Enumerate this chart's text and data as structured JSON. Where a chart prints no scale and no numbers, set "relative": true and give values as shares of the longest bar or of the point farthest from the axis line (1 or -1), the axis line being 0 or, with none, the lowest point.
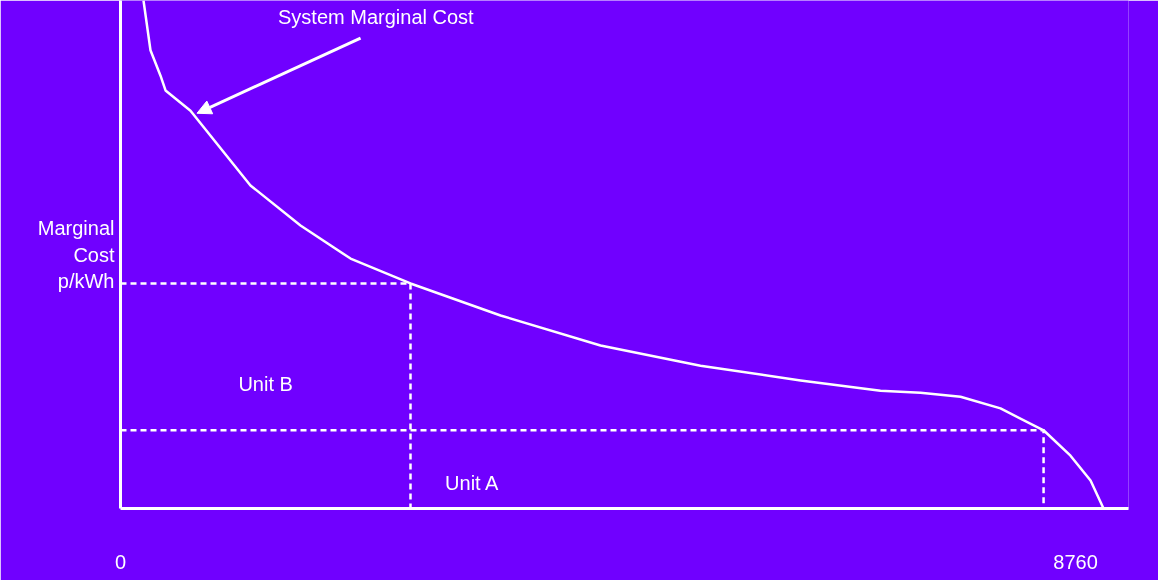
{
  "chart_data": {
    "type": "line",
    "relative": true,
    "ylabel": "Marginal\nCost\np/kWh",
    "xlim": [
      0,
      9246
    ],
    "xticks": [
      0,
      8760
    ],
    "grid": false,
    "series": [
      {
        "color": "#ffffff",
        "line_style": "solid",
        "x": [
          211,
          275,
          367,
          413,
          642,
          1192,
          1651,
          2110,
          2660,
          3486,
          4403,
          5320,
          6238,
          6971,
          7338,
          7705,
          8072,
          8467,
          8714,
          8898,
          9017
        ],
        "values": [
          1,
          0.902,
          0.852,
          0.823,
          0.783,
          0.636,
          0.557,
          0.492,
          0.443,
          0.38,
          0.321,
          0.281,
          0.252,
          0.232,
          0.228,
          0.22,
          0.197,
          0.154,
          0.104,
          0.055,
          0
        ]
      },
      {
        "color": "#ffffff",
        "line_style": "dashed",
        "x": [
          0,
          2660,
          2660
        ],
        "values": [
          0.443,
          0.443,
          0
        ]
      },
      {
        "color": "#ffffff",
        "line_style": "dashed",
        "x": [
          0,
          8467,
          8467
        ],
        "values": [
          0.154,
          0.154,
          0
        ]
      }
    ],
    "annotations": [
      {
        "text": "System Marginal Cost",
        "x": 642,
        "y": 0.783
      },
      "Unit B",
      "Unit A"
    ]
  }
}
